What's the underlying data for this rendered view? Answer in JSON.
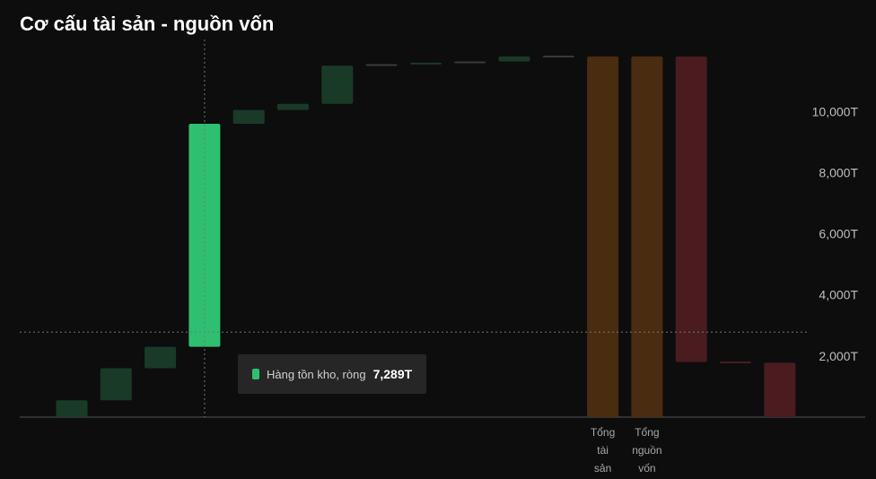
{
  "title": "Cơ cấu tài sản - nguồn vốn",
  "tooltip": {
    "label": "Hàng tồn kho, ròng",
    "value": "7,289T",
    "color": "#2fbf71"
  },
  "chart_data": {
    "type": "waterfall",
    "title": "Cơ cấu tài sản - nguồn vốn",
    "y_unit": "T",
    "ylim": [
      0,
      11800
    ],
    "y_ticks": [
      "2,000T",
      "4,000T",
      "6,000T",
      "8,000T",
      "10,000T"
    ],
    "y_tick_values": [
      2000,
      4000,
      6000,
      8000,
      10000
    ],
    "grid": false,
    "highlight_index": 3,
    "categories": [
      "",
      "",
      "",
      "Hàng tồn kho, ròng",
      "",
      "",
      "",
      "",
      "",
      "",
      "",
      "",
      "Tổng tài sản",
      "Tổng nguồn vốn",
      "",
      "",
      ""
    ],
    "x_labels": [
      {
        "index": 12,
        "lines": [
          "Tổng",
          "tài",
          "sản"
        ]
      },
      {
        "index": 13,
        "lines": [
          "Tổng",
          "nguồn",
          "vốn"
        ]
      }
    ],
    "bars": [
      {
        "start": 0,
        "end": 550,
        "color": "#1a3a28"
      },
      {
        "start": 550,
        "end": 1600,
        "color": "#1a3a28"
      },
      {
        "start": 1600,
        "end": 2300,
        "color": "#1a3a28"
      },
      {
        "start": 2300,
        "end": 9600,
        "color": "#2fbf71"
      },
      {
        "start": 9600,
        "end": 10050,
        "color": "#1a3a28"
      },
      {
        "start": 10050,
        "end": 10250,
        "color": "#1a3a28"
      },
      {
        "start": 10250,
        "end": 11500,
        "color": "#1a3a28"
      },
      {
        "start": 11500,
        "end": 11550,
        "color": "#3a3a3a"
      },
      {
        "start": 11550,
        "end": 11600,
        "color": "#1a3a28"
      },
      {
        "start": 11600,
        "end": 11640,
        "color": "#3a3a3a"
      },
      {
        "start": 11640,
        "end": 11800,
        "color": "#1a3a28"
      },
      {
        "start": 11800,
        "end": 11830,
        "color": "#3a3a3a"
      },
      {
        "start": 0,
        "end": 11800,
        "color": "#4a2c10"
      },
      {
        "start": 0,
        "end": 11800,
        "color": "#4a2c10"
      },
      {
        "start": 1800,
        "end": 11800,
        "color": "#4a1b1f"
      },
      {
        "start": 1780,
        "end": 1820,
        "color": "#4a1b1f"
      },
      {
        "start": 0,
        "end": 1780,
        "color": "#4a1b1f"
      }
    ],
    "crosshair_value": 2780
  }
}
